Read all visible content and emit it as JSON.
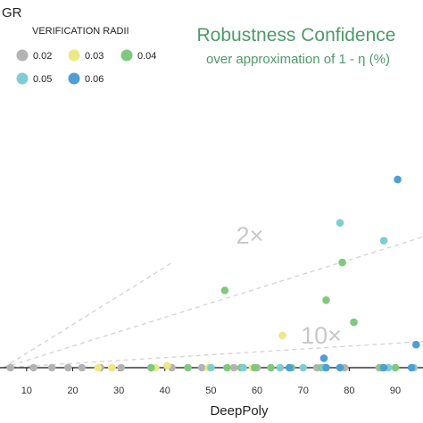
{
  "colors": {
    "0.02": "#b3b3b3",
    "0.03": "#ece884",
    "0.04": "#7fc97f",
    "0.05": "#7fcdd3",
    "0.06": "#4f9fd6",
    "title": "#4d9a6a",
    "reference_line": "#d6d6d6"
  },
  "chart_data": {
    "type": "scatter",
    "title": "Robustness Confidence",
    "subtitle": "over approximation of 1 - η (%)",
    "xlabel": "DeepPoly",
    "ylabel": "GR",
    "xlim": [
      5,
      96
    ],
    "ylim": [
      0,
      100
    ],
    "x_ticks": [
      "10",
      "20",
      "30",
      "40",
      "50",
      "60",
      "70",
      "80",
      "90"
    ],
    "legend": {
      "title": "VERIFICATION RADII",
      "placement": "top-left",
      "entries": [
        "0.02",
        "0.03",
        "0.04",
        "0.05",
        "0.06"
      ]
    },
    "reference_lines": [
      {
        "label": "",
        "slope": 1
      },
      {
        "label": "2×",
        "slope": 0.5
      },
      {
        "label": "10×",
        "slope": 0.1
      }
    ],
    "series": [
      {
        "name": "0.02",
        "points": [
          [
            6.5,
            0
          ],
          [
            11.5,
            0
          ],
          [
            15.5,
            0
          ],
          [
            19,
            0
          ],
          [
            22,
            0
          ],
          [
            26,
            0
          ],
          [
            28.5,
            0
          ],
          [
            30.5,
            0
          ],
          [
            37,
            0
          ],
          [
            41.5,
            0
          ],
          [
            48,
            0
          ],
          [
            55,
            0
          ],
          [
            60,
            0
          ],
          [
            73,
            0
          ],
          [
            79,
            0
          ],
          [
            86.5,
            0
          ]
        ]
      },
      {
        "name": "0.03",
        "points": [
          [
            25.5,
            0
          ],
          [
            28.5,
            0
          ],
          [
            38,
            0
          ],
          [
            40.5,
            0.7
          ],
          [
            49.5,
            0
          ],
          [
            59,
            0
          ],
          [
            65.5,
            11.2
          ]
        ]
      },
      {
        "name": "0.04",
        "points": [
          [
            37,
            0
          ],
          [
            45,
            0
          ],
          [
            53,
            26.9
          ],
          [
            53.5,
            0
          ],
          [
            56.5,
            0
          ],
          [
            59.5,
            0
          ],
          [
            63,
            0
          ],
          [
            67.5,
            0
          ],
          [
            74,
            0
          ],
          [
            75,
            23.5
          ],
          [
            78,
            0
          ],
          [
            78.5,
            36.6
          ],
          [
            81,
            15.8
          ],
          [
            87,
            0
          ],
          [
            90,
            0
          ]
        ]
      },
      {
        "name": "0.05",
        "points": [
          [
            50,
            0
          ],
          [
            57,
            0
          ],
          [
            65,
            0
          ],
          [
            70,
            0
          ],
          [
            74.5,
            0
          ],
          [
            78,
            50.4
          ],
          [
            87.5,
            44.2
          ],
          [
            88.5,
            0
          ],
          [
            94,
            0
          ]
        ]
      },
      {
        "name": "0.06",
        "points": [
          [
            67,
            0
          ],
          [
            74.5,
            3.3
          ],
          [
            75,
            0
          ],
          [
            78,
            0
          ],
          [
            87.5,
            0
          ],
          [
            90.5,
            65.5
          ],
          [
            93.5,
            0
          ],
          [
            94.5,
            8
          ]
        ]
      }
    ]
  }
}
